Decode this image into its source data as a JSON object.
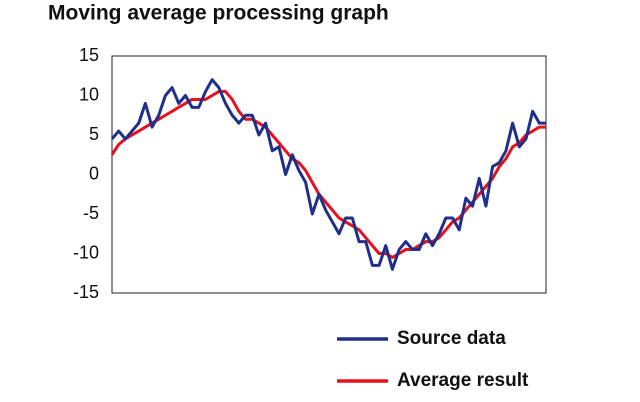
{
  "chart_data": {
    "type": "line",
    "title": "Moving average processing graph",
    "ylim": [
      -15,
      15
    ],
    "yticks": [
      15,
      10,
      5,
      0,
      -5,
      -10,
      -15
    ],
    "grid": false,
    "legend": "bottom-right",
    "series": [
      {
        "name": "Source data",
        "color": "#1f2f8a",
        "values": [
          4.5,
          5.5,
          4.5,
          5.5,
          6.5,
          9,
          6,
          7.5,
          10,
          11,
          9,
          10,
          8.5,
          8.5,
          10.5,
          12,
          11,
          9,
          7.5,
          6.5,
          7.5,
          7.5,
          5,
          6.5,
          3,
          3.5,
          0,
          2.5,
          0.5,
          -1,
          -5,
          -2.5,
          -4.5,
          -6,
          -7.5,
          -5.5,
          -5.5,
          -8.5,
          -8.5,
          -11.5,
          -11.5,
          -9,
          -12,
          -9.5,
          -8.5,
          -9.5,
          -9.5,
          -7.5,
          -9,
          -7.5,
          -5.5,
          -5.5,
          -7,
          -3,
          -4,
          -0.5,
          -4,
          1,
          1.5,
          3,
          6.5,
          3.5,
          4.5,
          8,
          6.5,
          6.5
        ]
      },
      {
        "name": "Average result",
        "color": "#e8101c",
        "values": [
          2.5,
          3.8,
          4.5,
          5,
          5.5,
          6,
          6.5,
          7,
          7.5,
          8,
          8.5,
          9,
          9.5,
          9.5,
          9.5,
          10,
          10.5,
          10.5,
          9.5,
          8,
          7,
          7,
          6.5,
          6,
          5,
          4,
          3,
          2,
          1.5,
          0.5,
          -1,
          -2.5,
          -3.5,
          -4.5,
          -5.5,
          -6,
          -6.5,
          -7,
          -8,
          -9,
          -10,
          -10,
          -10.5,
          -10,
          -9.5,
          -9.5,
          -9,
          -8.5,
          -8.5,
          -8,
          -7,
          -6,
          -5.5,
          -4.5,
          -3.5,
          -2.5,
          -1.5,
          -0.5,
          1,
          2,
          3.5,
          4,
          5,
          5.5,
          6,
          6
        ]
      }
    ]
  }
}
